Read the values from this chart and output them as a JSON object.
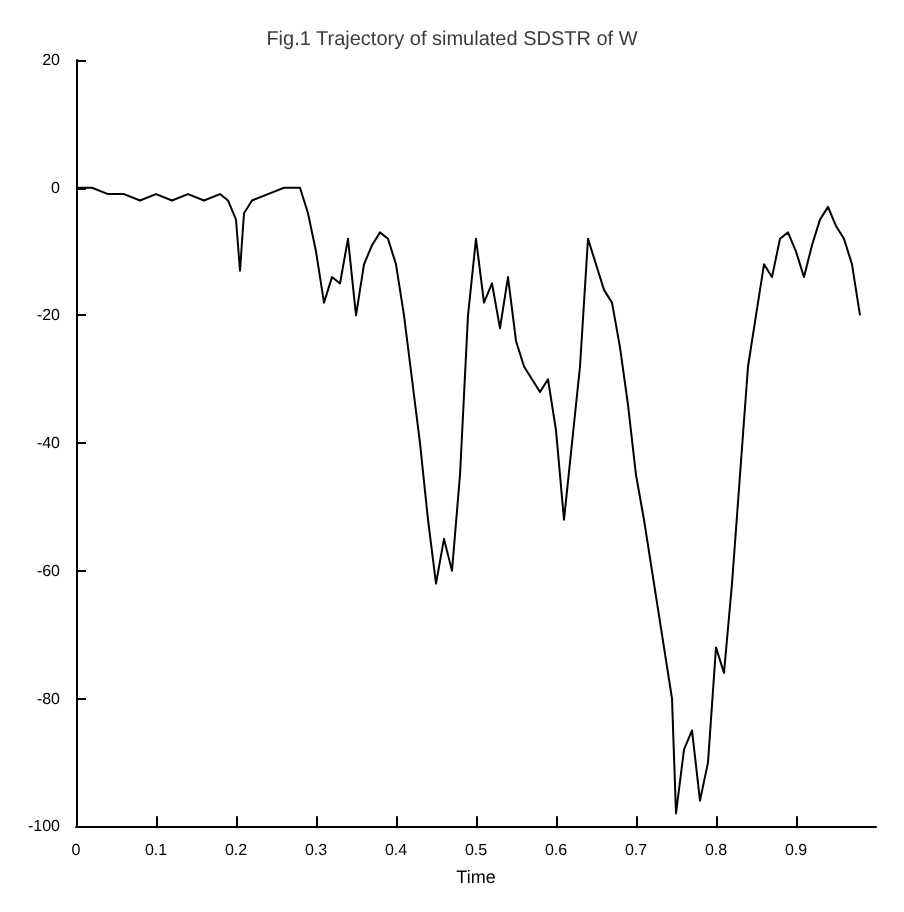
{
  "chart_data": {
    "type": "line",
    "title": "Fig.1 Trajectory of simulated SDSTR of W",
    "xlabel": "Time",
    "x": [
      0,
      0.02,
      0.04,
      0.06,
      0.08,
      0.1,
      0.12,
      0.14,
      0.16,
      0.18,
      0.19,
      0.2,
      0.205,
      0.21,
      0.22,
      0.24,
      0.26,
      0.28,
      0.29,
      0.3,
      0.31,
      0.32,
      0.33,
      0.34,
      0.35,
      0.36,
      0.37,
      0.38,
      0.39,
      0.4,
      0.41,
      0.42,
      0.43,
      0.44,
      0.45,
      0.46,
      0.47,
      0.48,
      0.49,
      0.5,
      0.51,
      0.52,
      0.53,
      0.54,
      0.55,
      0.56,
      0.57,
      0.58,
      0.59,
      0.6,
      0.61,
      0.62,
      0.63,
      0.64,
      0.65,
      0.66,
      0.67,
      0.68,
      0.69,
      0.7,
      0.71,
      0.72,
      0.73,
      0.745,
      0.75,
      0.76,
      0.77,
      0.78,
      0.79,
      0.8,
      0.81,
      0.82,
      0.83,
      0.84,
      0.85,
      0.86,
      0.87,
      0.88,
      0.89,
      0.9,
      0.91,
      0.92,
      0.93,
      0.94,
      0.95,
      0.96,
      0.97,
      0.98
    ],
    "series": [
      {
        "color": "#000000",
        "values": [
          0,
          0,
          -1,
          -1,
          -2,
          -1,
          -2,
          -1,
          -2,
          -1,
          -2,
          -5,
          -13,
          -4,
          -2,
          -1,
          0,
          0,
          -4,
          -10,
          -18,
          -14,
          -15,
          -8,
          -20,
          -12,
          -9,
          -7,
          -8,
          -12,
          -20,
          -30,
          -40,
          -52,
          -62,
          -55,
          -60,
          -45,
          -20,
          -8,
          -18,
          -15,
          -22,
          -14,
          -24,
          -28,
          -30,
          -32,
          -30,
          -38,
          -52,
          -40,
          -28,
          -8,
          -12,
          -16,
          -18,
          -25,
          -34,
          -45,
          -52,
          -60,
          -68,
          -80,
          -98,
          -88,
          -85,
          -96,
          -90,
          -72,
          -76,
          -62,
          -45,
          -28,
          -20,
          -12,
          -14,
          -8,
          -7,
          -10,
          -14,
          -9,
          -5,
          -3,
          -6,
          -8,
          -12,
          -20
        ]
      }
    ],
    "xlim": [
      0,
      1
    ],
    "xticks": [
      0,
      0.1,
      0.2,
      0.3,
      0.4,
      0.5,
      0.6,
      0.7,
      0.8,
      0.9
    ],
    "ylim": [
      -100,
      20
    ],
    "yticks": [
      -100,
      -80,
      -60,
      -40,
      -20,
      0,
      20
    ],
    "grid": false,
    "marker": "none",
    "line_style": "solid"
  }
}
